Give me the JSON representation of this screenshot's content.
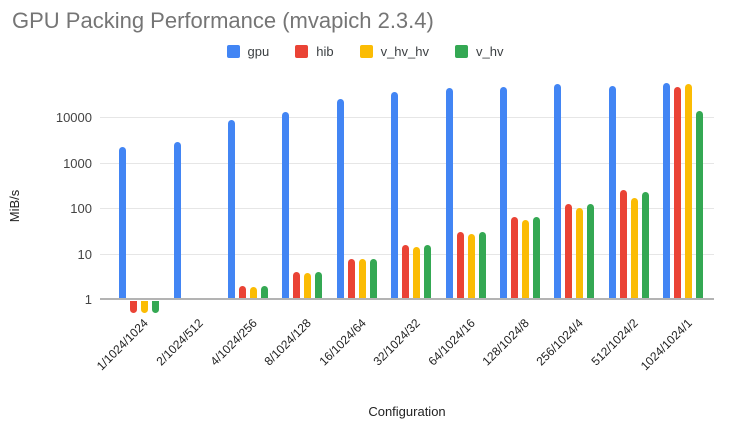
{
  "title": "GPU Packing Performance (mvapich 2.3.4)",
  "chart_data": {
    "type": "bar",
    "title": "GPU Packing Performance (mvapich 2.3.4)",
    "xlabel": "Configuration",
    "ylabel": "MiB/s",
    "y_scale": "log",
    "y_ticks": [
      1,
      10,
      100,
      1000,
      10000
    ],
    "ylim": [
      0.5,
      80000
    ],
    "grid": true,
    "legend_position": "top",
    "categories": [
      "1/1024/1024",
      "2/1024/512",
      "4/1024/256",
      "8/1024/128",
      "16/1024/64",
      "32/1024/32",
      "64/1024/16",
      "128/1024/8",
      "256/1024/4",
      "512/1024/2",
      "1024/1024/1"
    ],
    "series": [
      {
        "name": "gpu",
        "color": "#4285F4",
        "values": [
          2200,
          2800,
          8600,
          13000,
          25000,
          36000,
          44000,
          46000,
          52000,
          48000,
          55000
        ]
      },
      {
        "name": "hib",
        "color": "#EA4335",
        "values": [
          0.5,
          null,
          1.9,
          3.9,
          7.7,
          15,
          30,
          62,
          120,
          250,
          45000
        ]
      },
      {
        "name": "v_hv_hv",
        "color": "#FBBC04",
        "values": [
          0.5,
          null,
          1.8,
          3.8,
          7.4,
          14,
          27,
          55,
          100,
          170,
          53000
        ]
      },
      {
        "name": "v_hv",
        "color": "#34A853",
        "values": [
          0.5,
          null,
          1.9,
          3.9,
          7.7,
          15.5,
          30,
          62,
          122,
          230,
          13500
        ]
      }
    ]
  },
  "colors": {
    "title": "#757575",
    "axis_ticks": "#444444",
    "axis_titles": "#222222",
    "legend_text": "#3c4043",
    "gridline": "#e6e6e6",
    "baseline": "#b3b3b3"
  }
}
